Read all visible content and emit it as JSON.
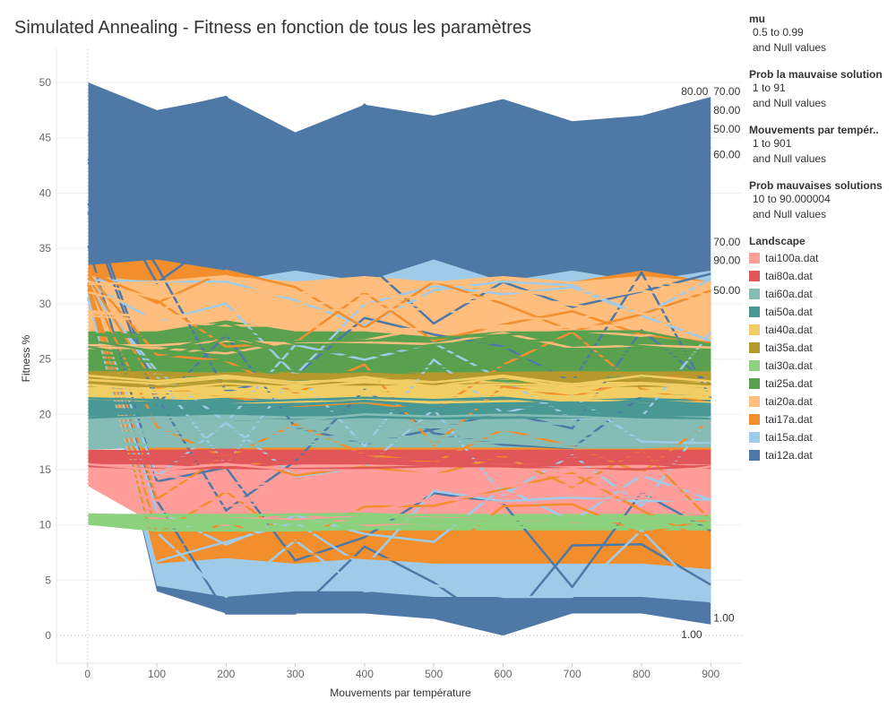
{
  "chart_data": {
    "type": "line",
    "title": "Simulated Annealing - Fitness en fonction de tous les paramètres",
    "xlabel": "Mouvements par température",
    "ylabel": "Fitness %",
    "x_ticks": [
      0,
      100,
      200,
      300,
      400,
      500,
      600,
      700,
      800,
      900
    ],
    "y_ticks": [
      0,
      5,
      10,
      15,
      20,
      25,
      30,
      35,
      40,
      45,
      50
    ],
    "xlim": [
      -45,
      945
    ],
    "ylim": [
      -2.5,
      53
    ],
    "x": [
      1,
      100,
      200,
      300,
      400,
      500,
      600,
      700,
      800,
      900
    ],
    "series": [
      {
        "name": "tai100a.dat",
        "color": "#FF9D9A",
        "band": [
          [
            13.5,
            10,
            10,
            10,
            10,
            10,
            10,
            10,
            10,
            10
          ],
          [
            15.5,
            15.5,
            15.5,
            15.5,
            15.5,
            15.5,
            15.5,
            15.5,
            15.5,
            15.5
          ]
        ]
      },
      {
        "name": "tai80a.dat",
        "color": "#E15759",
        "band": [
          [
            15.2,
            15,
            15,
            15,
            15,
            15,
            15,
            15,
            15,
            15
          ],
          [
            16.8,
            16.8,
            16.8,
            16.8,
            16.8,
            16.8,
            16.8,
            16.8,
            16.8,
            16.8
          ]
        ]
      },
      {
        "name": "tai60a.dat",
        "color": "#86BCB6",
        "band": [
          [
            16.8,
            17,
            17,
            17,
            17,
            17,
            17,
            17,
            17,
            17
          ],
          [
            19.8,
            19.8,
            20,
            19.8,
            20,
            19.8,
            20,
            19.8,
            20,
            19.8
          ]
        ]
      },
      {
        "name": "tai50a.dat",
        "color": "#499894",
        "band": [
          [
            19.5,
            19.5,
            19.5,
            19.5,
            19.5,
            19.5,
            19.5,
            19.5,
            19.5,
            19.5
          ],
          [
            21.5,
            21.3,
            21.5,
            21.3,
            21.5,
            21.3,
            21.5,
            21.3,
            21.5,
            21.3
          ]
        ]
      },
      {
        "name": "tai40a.dat",
        "color": "#F1CE63",
        "band": [
          [
            21,
            21,
            21,
            21,
            21,
            21,
            21,
            21,
            21,
            21
          ],
          [
            23.5,
            23,
            23.5,
            23,
            23.5,
            23,
            23.5,
            23,
            23.5,
            23
          ]
        ]
      },
      {
        "name": "tai35a.dat",
        "color": "#B6992D",
        "band": [
          [
            22.5,
            22.5,
            22.5,
            22.5,
            22.5,
            22.5,
            22.5,
            22.5,
            22.5,
            22.5
          ],
          [
            23.8,
            23.8,
            23.8,
            23.8,
            23.8,
            23.8,
            23.8,
            23.8,
            23.8,
            23.8
          ]
        ]
      },
      {
        "name": "tai30a.dat",
        "color": "#8CD17D",
        "band": [
          [
            10,
            9.5,
            9.5,
            9.5,
            9.5,
            9.5,
            9.5,
            9.5,
            9.5,
            9.5
          ],
          [
            11,
            11,
            11,
            11,
            11,
            11,
            11,
            11,
            11,
            11
          ]
        ]
      },
      {
        "name": "tai25a.dat",
        "color": "#59A14F",
        "band": [
          [
            23.5,
            23,
            23,
            23,
            23,
            23,
            23,
            23,
            23,
            23
          ],
          [
            27.5,
            27.5,
            28.5,
            27.5,
            27.5,
            27,
            27.5,
            27.5,
            27.5,
            26.5
          ]
        ]
      },
      {
        "name": "tai20a.dat",
        "color": "#FFBE7D",
        "band": [
          [
            26,
            26,
            25.5,
            26,
            26,
            26,
            26,
            26,
            26,
            26
          ],
          [
            32.5,
            32,
            32.5,
            32,
            32.5,
            32,
            32.5,
            32,
            32.5,
            32
          ]
        ]
      },
      {
        "name": "tai17a.dat",
        "color": "#F28E2B",
        "band": [
          [
            31,
            6.5,
            7,
            6.5,
            7,
            6.5,
            6.5,
            6.5,
            6.5,
            6
          ],
          [
            33.5,
            34,
            33,
            31.5,
            32,
            32,
            31.5,
            32,
            33,
            32
          ]
        ]
      },
      {
        "name": "tai15a.dat",
        "color": "#A0CBE8",
        "band": [
          [
            30,
            4.5,
            3.5,
            4,
            4,
            3.5,
            3.5,
            3.5,
            3.5,
            3
          ],
          [
            32.5,
            32,
            32,
            33,
            32,
            34,
            32,
            33,
            32,
            33
          ]
        ]
      },
      {
        "name": "tai12a.dat",
        "color": "#4E79A7",
        "band": [
          [
            30.5,
            4,
            2,
            2,
            2,
            1.5,
            0,
            2,
            2,
            1
          ],
          [
            50,
            47.5,
            48.7,
            45.5,
            48,
            47,
            48.5,
            46.5,
            47,
            48.7
          ]
        ]
      }
    ],
    "end_labels": [
      {
        "text": "80.00",
        "x": 900,
        "y": 49.2
      },
      {
        "text": "70.00",
        "x": 900,
        "y": 49.2
      },
      {
        "text": "80.00",
        "x": 900,
        "y": 47.5
      },
      {
        "text": "50.00",
        "x": 900,
        "y": 45.8
      },
      {
        "text": "60.00",
        "x": 900,
        "y": 43.5
      },
      {
        "text": "70.00",
        "x": 900,
        "y": 35.6
      },
      {
        "text": "90.00",
        "x": 900,
        "y": 33.9
      },
      {
        "text": "50.00",
        "x": 900,
        "y": 31.2
      },
      {
        "text": "1.00",
        "x": 900,
        "y": 1.6
      },
      {
        "text": "1.00",
        "x": 900,
        "y": 0.1
      }
    ],
    "legend_placement": "right",
    "grid": true
  },
  "filters": [
    {
      "title": "mu",
      "lines": [
        "0.5 to 0.99",
        "and Null values"
      ]
    },
    {
      "title": "Prob la mauvaise solution",
      "lines": [
        "1 to 91",
        "and Null values"
      ]
    },
    {
      "title": "Mouvements par tempér..",
      "lines": [
        "1 to 901",
        "and Null values"
      ]
    },
    {
      "title": "Prob mauvaises solutions",
      "lines": [
        "10 to 90.000004",
        "and Null values"
      ]
    }
  ],
  "legend": {
    "title": "Landscape"
  }
}
